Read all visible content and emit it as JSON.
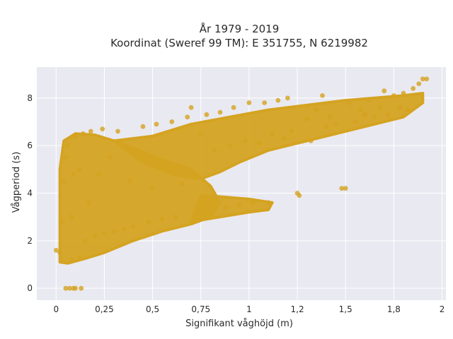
{
  "chart_data": {
    "type": "scatter",
    "title_line1": "År 1979 - 2019",
    "title_line2": "Koordinat (Sweref 99 TM): E 351755, N 6219982",
    "xlabel": "Signifikant våghöjd (m)",
    "ylabel": "Vågperiod (s)",
    "xlim": [
      -0.1,
      2.02
    ],
    "ylim": [
      -0.5,
      9.3
    ],
    "x_ticks": [
      {
        "value": 0,
        "label": "0"
      },
      {
        "value": 0.25,
        "label": "0,25"
      },
      {
        "value": 0.5,
        "label": "0,5"
      },
      {
        "value": 0.75,
        "label": "0,75"
      },
      {
        "value": 1.0,
        "label": "1"
      },
      {
        "value": 1.25,
        "label": "1,2"
      },
      {
        "value": 1.5,
        "label": "1,5"
      },
      {
        "value": 1.75,
        "label": "1,8"
      },
      {
        "value": 2.0,
        "label": "2"
      }
    ],
    "y_ticks": [
      {
        "value": 0,
        "label": "0"
      },
      {
        "value": 2,
        "label": "2"
      },
      {
        "value": 4,
        "label": "4"
      },
      {
        "value": 6,
        "label": "6"
      },
      {
        "value": 8,
        "label": "8"
      }
    ],
    "grid": true,
    "background_color": "#e9e9f1",
    "marker_color": "#d4a321",
    "points": [
      [
        0.05,
        0
      ],
      [
        0.07,
        0
      ],
      [
        0.09,
        0
      ],
      [
        0.1,
        0
      ],
      [
        0.13,
        0
      ],
      [
        0.0,
        1.6
      ],
      [
        0.02,
        1.5
      ],
      [
        0.03,
        2.8
      ],
      [
        0.04,
        4.5
      ],
      [
        0.05,
        5.5
      ],
      [
        0.06,
        6.0
      ],
      [
        0.08,
        1.2
      ],
      [
        0.08,
        3.0
      ],
      [
        0.09,
        4.8
      ],
      [
        0.1,
        6.4
      ],
      [
        0.12,
        1.3
      ],
      [
        0.12,
        5.0
      ],
      [
        0.14,
        6.5
      ],
      [
        0.15,
        2.0
      ],
      [
        0.17,
        3.6
      ],
      [
        0.18,
        6.6
      ],
      [
        0.2,
        2.2
      ],
      [
        0.22,
        4.8
      ],
      [
        0.24,
        6.7
      ],
      [
        0.25,
        2.3
      ],
      [
        0.28,
        5.5
      ],
      [
        0.3,
        2.4
      ],
      [
        0.32,
        6.6
      ],
      [
        0.35,
        2.5
      ],
      [
        0.38,
        4.5
      ],
      [
        0.4,
        2.6
      ],
      [
        0.42,
        5.8
      ],
      [
        0.45,
        6.8
      ],
      [
        0.48,
        2.8
      ],
      [
        0.5,
        4.2
      ],
      [
        0.52,
        6.9
      ],
      [
        0.55,
        2.9
      ],
      [
        0.58,
        5.2
      ],
      [
        0.6,
        7.0
      ],
      [
        0.62,
        3.0
      ],
      [
        0.65,
        4.4
      ],
      [
        0.68,
        7.2
      ],
      [
        0.7,
        7.6
      ],
      [
        0.72,
        3.1
      ],
      [
        0.75,
        6.5
      ],
      [
        0.78,
        7.3
      ],
      [
        0.8,
        3.3
      ],
      [
        0.82,
        5.8
      ],
      [
        0.85,
        7.4
      ],
      [
        0.88,
        3.4
      ],
      [
        0.9,
        6.0
      ],
      [
        0.92,
        7.6
      ],
      [
        0.95,
        3.5
      ],
      [
        0.98,
        6.2
      ],
      [
        1.0,
        7.8
      ],
      [
        1.02,
        3.6
      ],
      [
        1.05,
        6.1
      ],
      [
        1.08,
        7.8
      ],
      [
        1.1,
        3.6
      ],
      [
        1.12,
        6.5
      ],
      [
        1.15,
        7.9
      ],
      [
        1.18,
        6.3
      ],
      [
        1.2,
        8.0
      ],
      [
        1.22,
        6.6
      ],
      [
        1.25,
        4.0
      ],
      [
        1.26,
        3.9
      ],
      [
        1.3,
        7.1
      ],
      [
        1.32,
        6.2
      ],
      [
        1.35,
        7.5
      ],
      [
        1.38,
        8.1
      ],
      [
        1.4,
        6.8
      ],
      [
        1.42,
        7.2
      ],
      [
        1.45,
        6.9
      ],
      [
        1.48,
        4.2
      ],
      [
        1.5,
        4.2
      ],
      [
        1.52,
        7.8
      ],
      [
        1.55,
        7.0
      ],
      [
        1.58,
        7.5
      ],
      [
        1.6,
        7.3
      ],
      [
        1.62,
        7.9
      ],
      [
        1.65,
        7.2
      ],
      [
        1.68,
        7.6
      ],
      [
        1.7,
        8.3
      ],
      [
        1.72,
        7.3
      ],
      [
        1.75,
        8.1
      ],
      [
        1.78,
        7.6
      ],
      [
        1.8,
        8.2
      ],
      [
        1.82,
        7.5
      ],
      [
        1.85,
        8.4
      ],
      [
        1.88,
        8.6
      ],
      [
        1.9,
        8.8
      ],
      [
        1.92,
        8.8
      ]
    ]
  }
}
